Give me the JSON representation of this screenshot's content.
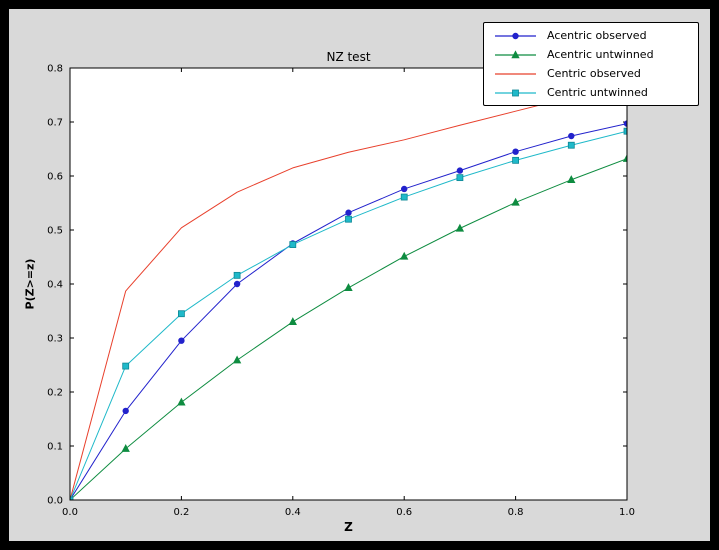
{
  "window": {
    "background": "#000000"
  },
  "figure": {
    "background": "#d9d9d9",
    "axes_background": "#ffffff",
    "frame_color": "#000000"
  },
  "chart_data": {
    "type": "line",
    "title": "NZ test",
    "xlabel": "Z",
    "ylabel": "P(Z>=z)",
    "xlim": [
      0.0,
      1.0
    ],
    "ylim": [
      0.0,
      0.8
    ],
    "xticks": [
      0.0,
      0.2,
      0.4,
      0.6,
      0.8,
      1.0
    ],
    "yticks": [
      0.0,
      0.1,
      0.2,
      0.3,
      0.4,
      0.5,
      0.6,
      0.7,
      0.8
    ],
    "grid": false,
    "legend_position": "upper right",
    "x": [
      0.0,
      0.1,
      0.2,
      0.3,
      0.4,
      0.5,
      0.6,
      0.7,
      0.8,
      0.9,
      1.0
    ],
    "series": [
      {
        "name": "Acentric observed",
        "color": "#2222cc",
        "marker": "circle",
        "values": [
          0.0,
          0.165,
          0.295,
          0.4,
          0.475,
          0.532,
          0.576,
          0.61,
          0.645,
          0.674,
          0.697
        ]
      },
      {
        "name": "Acentric untwinned",
        "color": "#0e8c40",
        "marker": "triangle",
        "values": [
          0.0,
          0.095,
          0.181,
          0.259,
          0.33,
          0.393,
          0.451,
          0.503,
          0.551,
          0.593,
          0.632
        ]
      },
      {
        "name": "Centric observed",
        "color": "#e8402c",
        "marker": "none",
        "values": [
          0.0,
          0.387,
          0.504,
          0.57,
          0.615,
          0.644,
          0.667,
          0.694,
          0.72,
          0.746,
          0.77
        ]
      },
      {
        "name": "Centric untwinned",
        "color": "#1fb9c9",
        "marker": "square",
        "marker_edge": "#0e8794",
        "values": [
          0.0,
          0.248,
          0.345,
          0.416,
          0.473,
          0.52,
          0.561,
          0.597,
          0.629,
          0.657,
          0.683
        ]
      }
    ]
  }
}
